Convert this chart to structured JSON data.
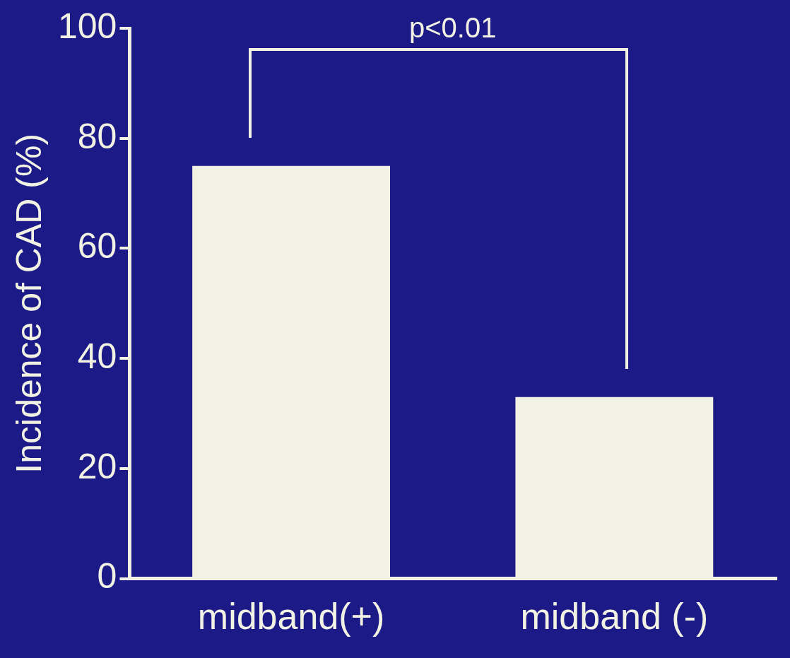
{
  "chart_data": {
    "type": "bar",
    "ylabel": "Incidence of CAD (%)",
    "categories": [
      "midband(+)",
      "midband (-)"
    ],
    "values": [
      75,
      33
    ],
    "color": "#f2f2e4",
    "ylim": [
      0,
      100
    ],
    "yticks": [
      0,
      20,
      40,
      60,
      80,
      100
    ],
    "grid": false,
    "legend": false,
    "annotations": [
      "p<0.01"
    ]
  }
}
